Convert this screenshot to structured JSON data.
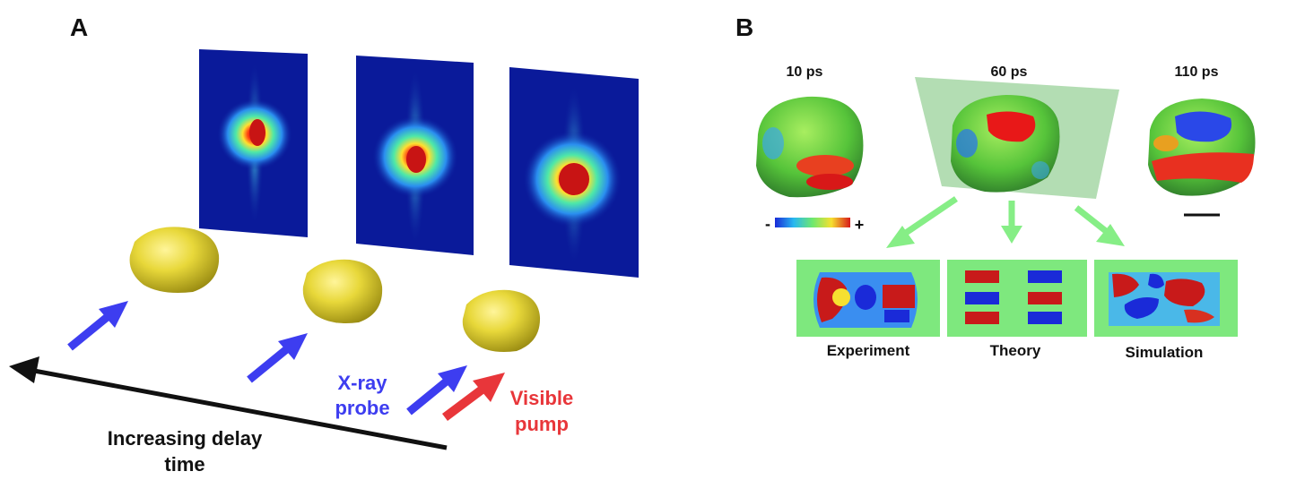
{
  "panel_a": {
    "label": "A",
    "xray_line1": "X-ray",
    "xray_line2": "probe",
    "pump_line1": "Visible",
    "pump_line2": "pump",
    "delay_line1": "Increasing delay",
    "delay_line2": "time"
  },
  "panel_b": {
    "label": "B",
    "times": [
      "10 ps",
      "60 ps",
      "110 ps"
    ],
    "colorbar_minus": "-",
    "colorbar_plus": "+",
    "slices": [
      "Experiment",
      "Theory",
      "Simulation"
    ]
  },
  "colors": {
    "xray": "#3d3df0",
    "pump": "#e8363a",
    "particle": "#e8d83a",
    "slice_bg": "#7ee87e",
    "arrow_green": "#86ee86",
    "pattern_bg": "#0a1a9a"
  }
}
